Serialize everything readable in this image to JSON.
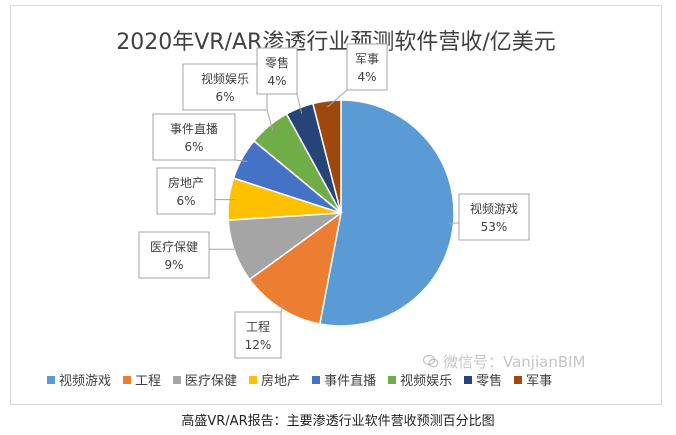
{
  "chart_data": {
    "type": "pie",
    "title": "2020年VR/AR渗透行业预测软件营收/亿美元",
    "categories": [
      "视频游戏",
      "工程",
      "医疗保健",
      "房地产",
      "事件直播",
      "视频娱乐",
      "零售",
      "军事"
    ],
    "values": [
      53,
      12,
      9,
      6,
      6,
      6,
      4,
      4
    ],
    "value_labels": [
      "53%",
      "12%",
      "9%",
      "6%",
      "6%",
      "6%",
      "4%",
      "4%"
    ],
    "colors": [
      "#5b9bd5",
      "#ed7d31",
      "#a5a5a5",
      "#ffc000",
      "#4472c4",
      "#70ad47",
      "#264478",
      "#9e480e"
    ],
    "legend_position": "bottom",
    "start_angle_deg": 0,
    "direction": "clockwise"
  },
  "watermark": "微信号：VanjianBIM",
  "caption": "高盛VR/AR报告：主要渗透行业软件营收预测百分比图"
}
